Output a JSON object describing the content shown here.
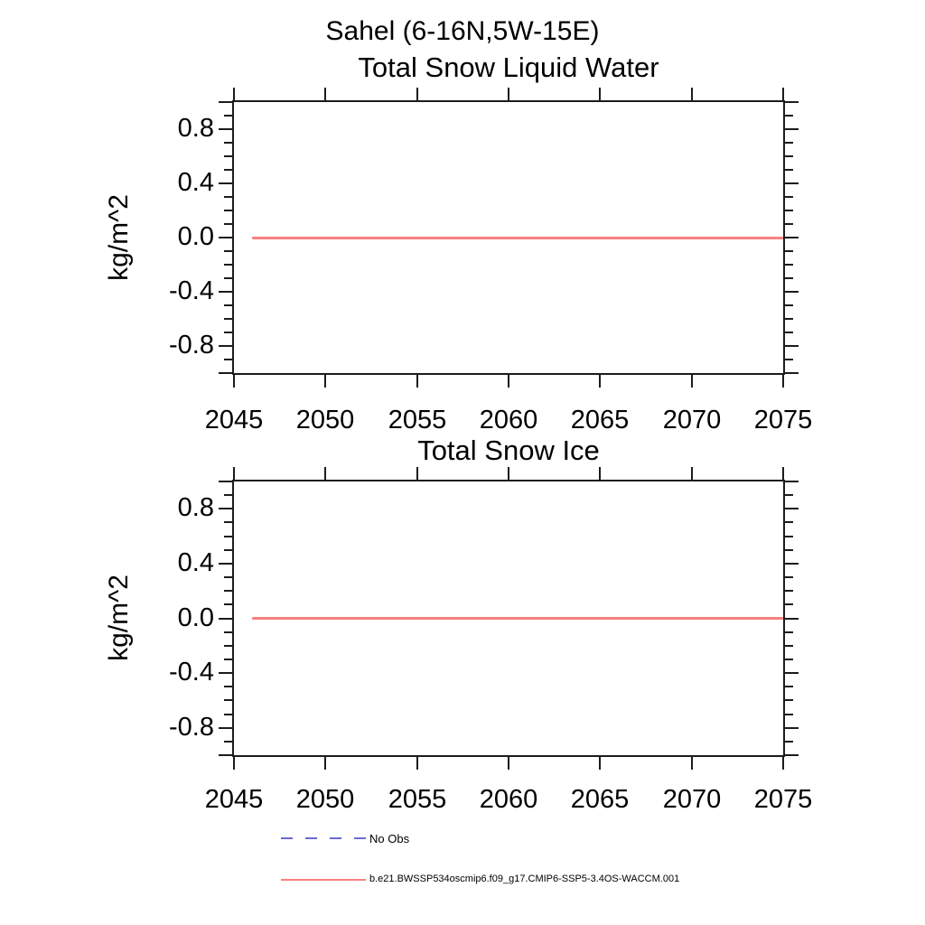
{
  "figure_title": "Sahel (6-16N,5W-15E)",
  "colors": {
    "axis": "#1c1c1c",
    "text": "#000000",
    "model_line": "#fa8080",
    "no_obs_line": "#6a6ad4"
  },
  "legend": {
    "items": [
      {
        "label": "No Obs",
        "style": "dashed",
        "color": "#6a6ad4"
      },
      {
        "label": "b.e21.BWSSP534oscmip6.f09_g17.CMIP6-SSP5-3.4OS-WACCM.001",
        "style": "solid",
        "color": "#fa8080"
      }
    ]
  },
  "chart_data": [
    {
      "type": "line",
      "title": "Total Snow Liquid Water",
      "xlabel": "",
      "ylabel": "kg/m^2",
      "xlim": [
        2045,
        2075
      ],
      "ylim": [
        -1.0,
        1.0
      ],
      "grid": false,
      "x_ticks": {
        "values": [
          2045,
          2050,
          2055,
          2060,
          2065,
          2070,
          2075
        ],
        "labels": [
          "2045",
          "2050",
          "2055",
          "2060",
          "2065",
          "2070",
          "2075"
        ]
      },
      "y_ticks": {
        "values": [
          0.8,
          0.4,
          0.0,
          -0.4,
          -0.8
        ],
        "labels": [
          "0.8",
          "0.4",
          "0.0",
          "-0.4",
          "-0.8"
        ],
        "edge_values": [
          1.0,
          -1.0
        ],
        "minor_step": 0.1
      },
      "series": [
        {
          "name": "b.e21.BWSSP534oscmip6.f09_g17.CMIP6-SSP5-3.4OS-WACCM.001",
          "color": "#fa8080",
          "x": [
            2046,
            2075
          ],
          "values": [
            0.0,
            0.0
          ]
        }
      ]
    },
    {
      "type": "line",
      "title": "Total Snow Ice",
      "xlabel": "",
      "ylabel": "kg/m^2",
      "xlim": [
        2045,
        2075
      ],
      "ylim": [
        -1.0,
        1.0
      ],
      "grid": false,
      "x_ticks": {
        "values": [
          2045,
          2050,
          2055,
          2060,
          2065,
          2070,
          2075
        ],
        "labels": [
          "2045",
          "2050",
          "2055",
          "2060",
          "2065",
          "2070",
          "2075"
        ]
      },
      "y_ticks": {
        "values": [
          0.8,
          0.4,
          0.0,
          -0.4,
          -0.8
        ],
        "labels": [
          "0.8",
          "0.4",
          "0.0",
          "-0.4",
          "-0.8"
        ],
        "edge_values": [
          1.0,
          -1.0
        ],
        "minor_step": 0.1
      },
      "series": [
        {
          "name": "b.e21.BWSSP534oscmip6.f09_g17.CMIP6-SSP5-3.4OS-WACCM.001",
          "color": "#fa8080",
          "x": [
            2046,
            2075
          ],
          "values": [
            0.0,
            0.0
          ]
        }
      ]
    }
  ]
}
